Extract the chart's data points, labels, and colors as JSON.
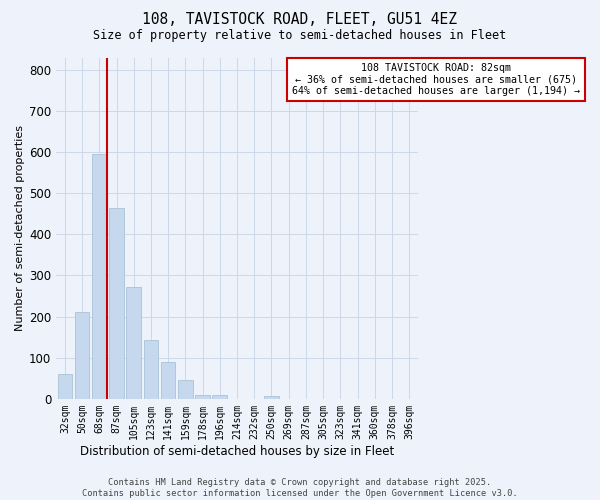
{
  "title1": "108, TAVISTOCK ROAD, FLEET, GU51 4EZ",
  "title2": "Size of property relative to semi-detached houses in Fleet",
  "xlabel": "Distribution of semi-detached houses by size in Fleet",
  "ylabel": "Number of semi-detached properties",
  "bar_color": "#c5d8ed",
  "bar_edgecolor": "#a0bcd0",
  "categories": [
    "32sqm",
    "50sqm",
    "68sqm",
    "87sqm",
    "105sqm",
    "123sqm",
    "141sqm",
    "159sqm",
    "178sqm",
    "196sqm",
    "214sqm",
    "232sqm",
    "250sqm",
    "269sqm",
    "287sqm",
    "305sqm",
    "323sqm",
    "341sqm",
    "360sqm",
    "378sqm",
    "396sqm"
  ],
  "values": [
    60,
    210,
    595,
    465,
    273,
    143,
    90,
    45,
    10,
    10,
    0,
    0,
    8,
    0,
    0,
    0,
    0,
    0,
    0,
    0,
    0
  ],
  "ylim": [
    0,
    830
  ],
  "yticks": [
    0,
    100,
    200,
    300,
    400,
    500,
    600,
    700,
    800
  ],
  "marker_label_line1": "108 TAVISTOCK ROAD: 82sqm",
  "marker_label_line2": "← 36% of semi-detached houses are smaller (675)",
  "marker_label_line3": "64% of semi-detached houses are larger (1,194) →",
  "vline_color": "#cc0000",
  "annotation_box_facecolor": "#ffffff",
  "annotation_box_edgecolor": "#cc0000",
  "grid_color": "#ccd8e8",
  "background_color": "#eef2fa",
  "footer_line1": "Contains HM Land Registry data © Crown copyright and database right 2025.",
  "footer_line2": "Contains public sector information licensed under the Open Government Licence v3.0."
}
